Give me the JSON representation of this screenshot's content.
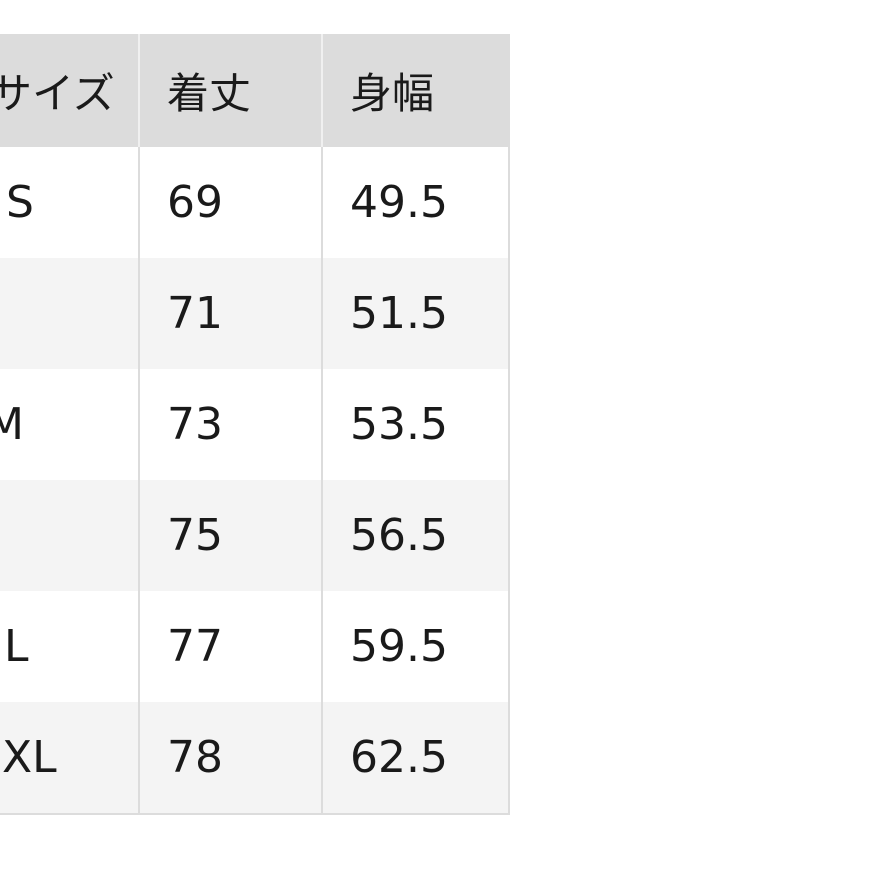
{
  "table": {
    "headers": [
      "サイズ",
      "着丈",
      "身幅"
    ],
    "rows": [
      [
        "S",
        "69",
        "49.5"
      ],
      [
        "",
        "71",
        "51.5"
      ],
      [
        "M",
        "73",
        "53.5"
      ],
      [
        "",
        "75",
        "56.5"
      ],
      [
        "L",
        "77",
        "59.5"
      ],
      [
        "XL",
        "78",
        "62.5"
      ]
    ]
  },
  "colors": {
    "header_bg": "#dcdcdc",
    "alt_row_bg": "#f4f4f4",
    "border": "#dcdcdc"
  }
}
